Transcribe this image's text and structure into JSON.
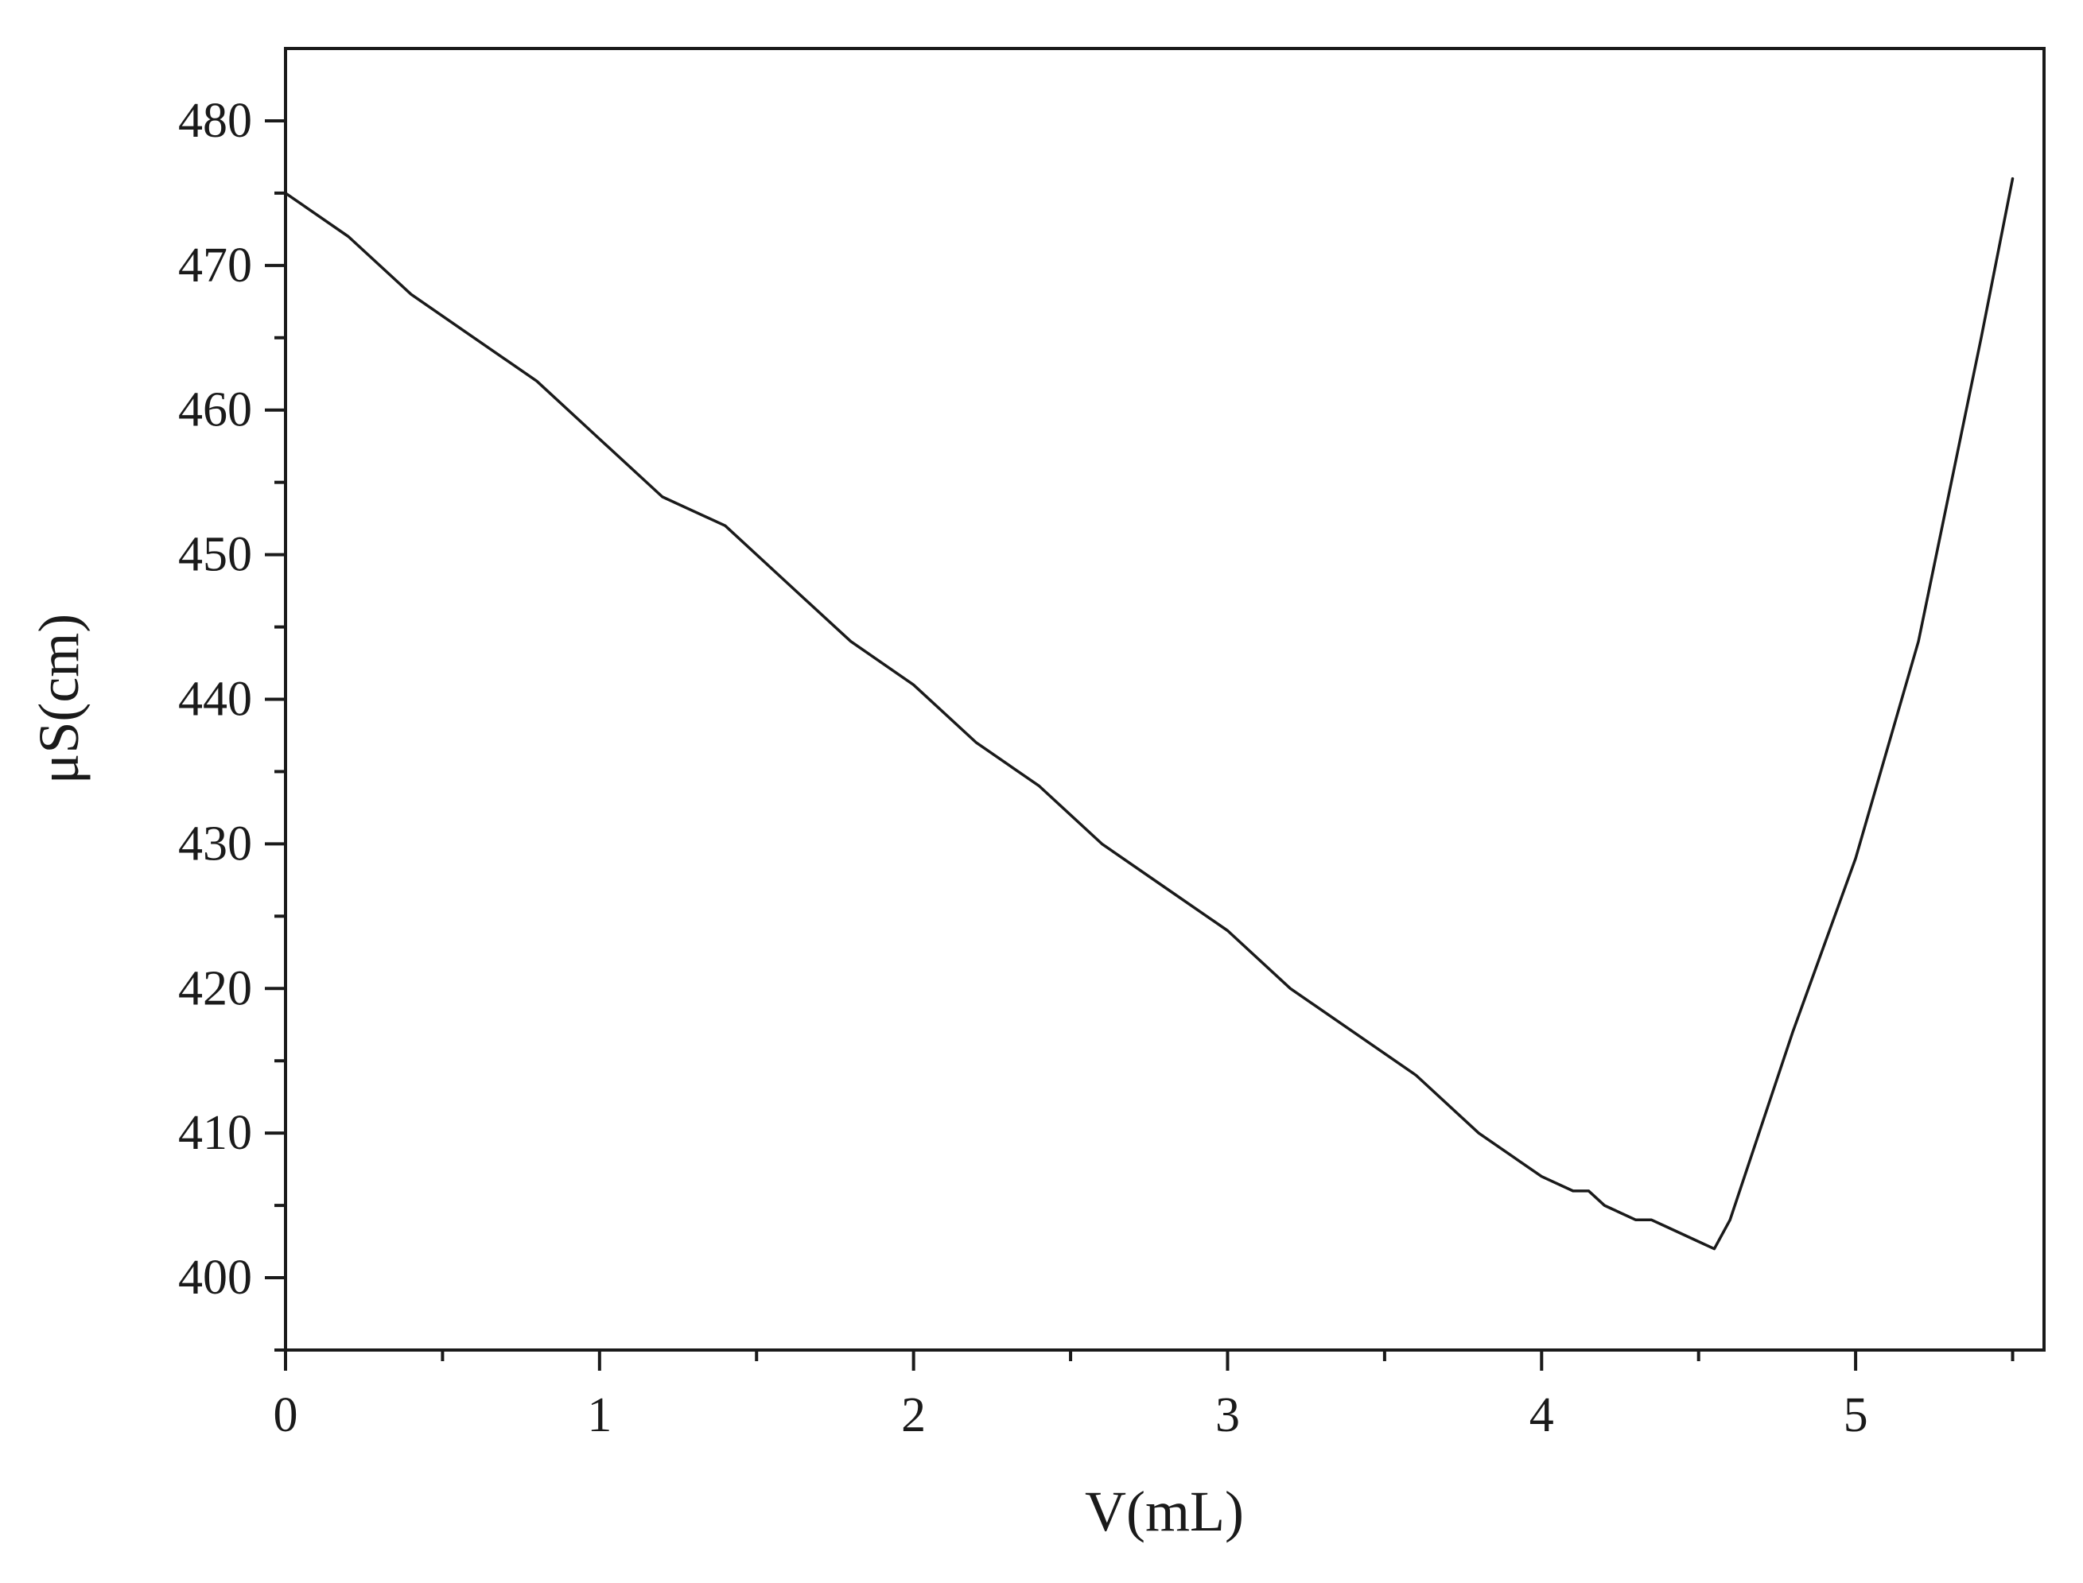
{
  "chart_data": {
    "type": "line",
    "title": "",
    "xlabel": "V(mL)",
    "ylabel": "μS(cm)",
    "xlim": [
      0,
      5.6
    ],
    "ylim": [
      395,
      485
    ],
    "x_ticks": [
      0,
      1,
      2,
      3,
      4,
      5
    ],
    "y_ticks": [
      400,
      410,
      420,
      430,
      440,
      450,
      460,
      470,
      480
    ],
    "grid": false,
    "legend": "none",
    "line_color": "#1a1a1a",
    "series": [
      {
        "x": [
          0,
          0.2,
          0.4,
          0.6,
          0.8,
          1.0,
          1.2,
          1.4,
          1.6,
          1.8,
          2.0,
          2.2,
          2.4,
          2.6,
          2.8,
          3.0,
          3.2,
          3.4,
          3.6,
          3.8,
          4.0,
          4.1,
          4.15,
          4.2,
          4.3,
          4.35,
          4.4,
          4.5,
          4.55,
          4.6,
          4.8,
          5.0,
          5.2,
          5.4,
          5.5
        ],
        "y": [
          475,
          472,
          468,
          465,
          462,
          458,
          454,
          452,
          448,
          444,
          441,
          437,
          434,
          430,
          427,
          424,
          420,
          417,
          414,
          410,
          407,
          406,
          406,
          405,
          404,
          404,
          403.5,
          402.5,
          402,
          404,
          417,
          429,
          444,
          465,
          476
        ]
      }
    ]
  }
}
